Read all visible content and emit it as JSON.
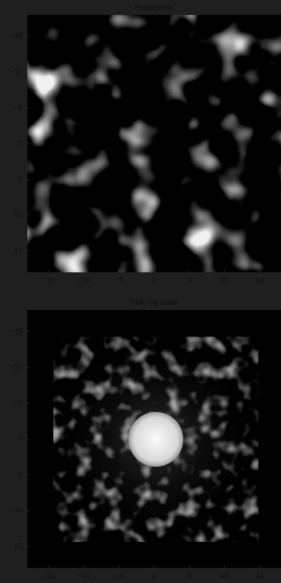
{
  "chart_data": [
    {
      "type": "image",
      "title": "Phase error",
      "colormap": "gray",
      "xlim": [
        -18,
        18
      ],
      "ylim": [
        -18,
        18
      ],
      "y_inverted": true,
      "xticks": [
        {
          "value": -15,
          "label": "−15"
        },
        {
          "value": -10,
          "label": "−10"
        },
        {
          "value": -5,
          "label": "−5"
        },
        0,
        5,
        10,
        15
      ],
      "yticks": [
        {
          "value": -15,
          "label": "−15"
        },
        {
          "value": -10,
          "label": "−10"
        },
        {
          "value": -5,
          "label": "−5"
        },
        0,
        5,
        10,
        15
      ]
    },
    {
      "type": "image",
      "title": "PSF, log scale",
      "colormap": "gray",
      "xlim": [
        -18,
        18
      ],
      "ylim": [
        -18,
        18
      ],
      "y_inverted": true,
      "xticks": [
        {
          "value": -15,
          "label": "−15"
        },
        {
          "value": -10,
          "label": "−10"
        },
        {
          "value": -5,
          "label": "−5"
        },
        0,
        5,
        10,
        15
      ],
      "yticks": [
        {
          "value": -15,
          "label": "−15"
        },
        {
          "value": -10,
          "label": "−10"
        },
        {
          "value": -5,
          "label": "−5"
        },
        0,
        5,
        10,
        15
      ]
    }
  ]
}
